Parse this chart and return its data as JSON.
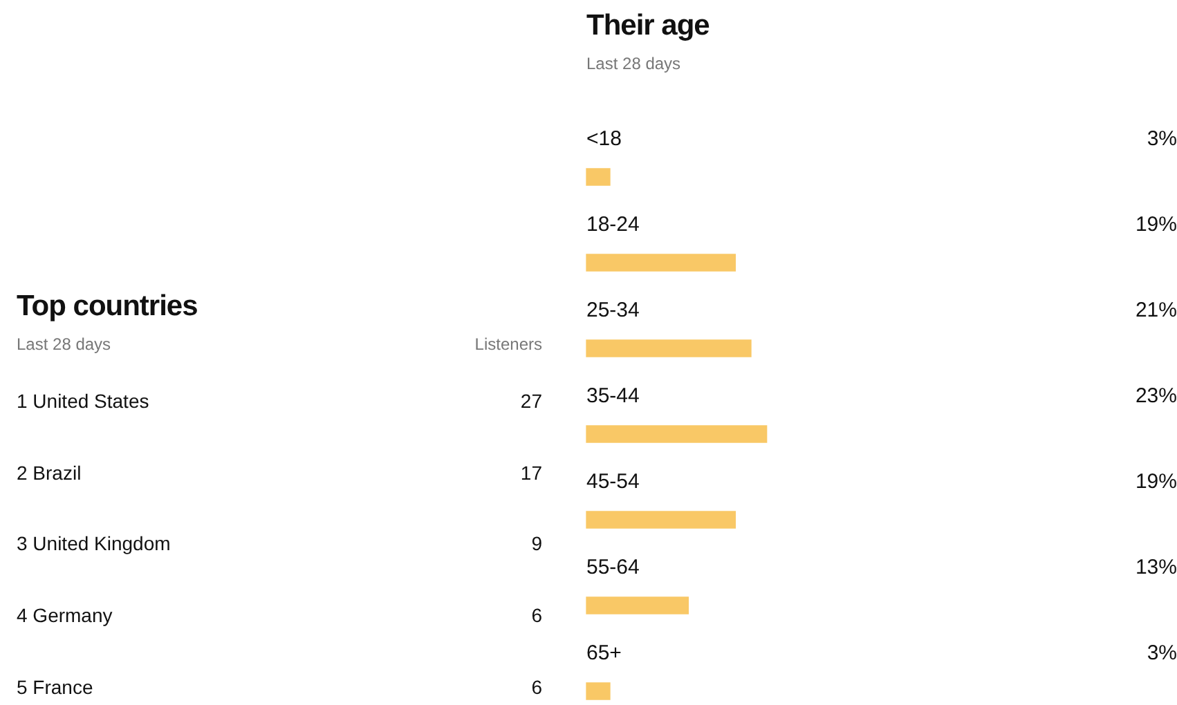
{
  "chart_data": [
    {
      "type": "other",
      "title": "Top countries",
      "subtitle": "Last 28 days",
      "ylabel": "Listeners",
      "categories": [
        "1 United States",
        "2 Brazil",
        "3 United Kingdom",
        "4 Germany",
        "5 France"
      ],
      "values": [
        27,
        17,
        9,
        6,
        6
      ],
      "data_labels": true
    },
    {
      "type": "bar",
      "orientation": "horizontal",
      "title": "Their age",
      "subtitle": "Last 28 days",
      "categories": [
        "<18",
        "18-24",
        "25-34",
        "35-44",
        "45-54",
        "55-64",
        "65+"
      ],
      "values": [
        3,
        19,
        21,
        23,
        19,
        13,
        3
      ],
      "value_labels": [
        "3%",
        "19%",
        "21%",
        "23%",
        "19%",
        "13%",
        "3%"
      ],
      "color": "#f9c866",
      "legend": false
    }
  ]
}
